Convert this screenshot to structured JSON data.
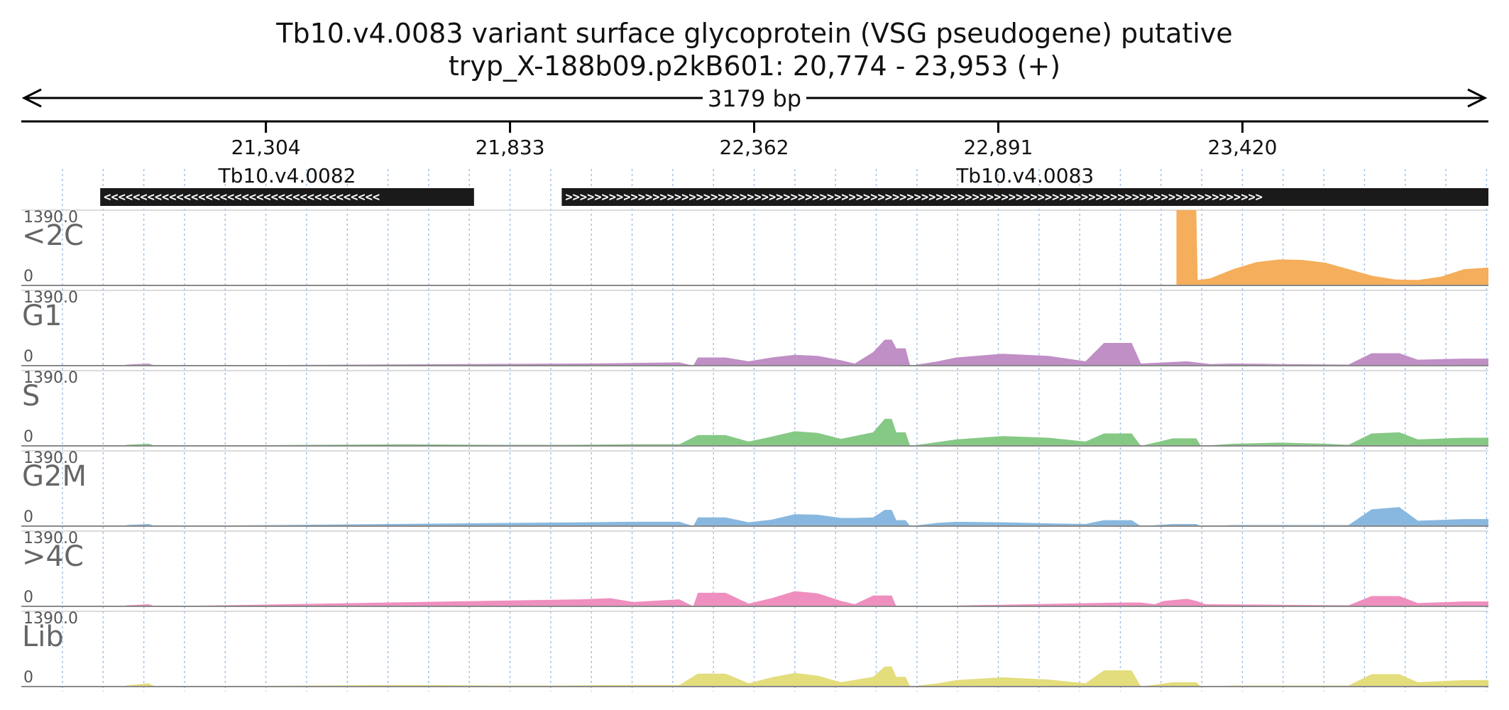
{
  "header": {
    "title_line1": "Tb10.v4.0083  variant surface glycoprotein (VSG  pseudogene)  putative",
    "title_line2": "tryp_X-188b09.p2kB601: 20,774 - 23,953 (+)",
    "span_label": "3179 bp"
  },
  "chart_data": {
    "type": "area",
    "region": {
      "contig": "tryp_X-188b09.p2kB601",
      "start": 20774,
      "end": 23953,
      "strand": "+"
    },
    "xlim": [
      20774,
      23953
    ],
    "tick_positions": [
      21304,
      21833,
      22362,
      22891,
      23420
    ],
    "tick_labels": [
      "21,304",
      "21,833",
      "22,362",
      "22,891",
      "23,420"
    ],
    "grid": true,
    "genes": [
      {
        "name": "Tb10.v4.0082",
        "start": 20945,
        "end": 21755,
        "strand": "-"
      },
      {
        "name": "Tb10.v4.0083",
        "start": 21945,
        "end": 23953,
        "strand": "+"
      }
    ],
    "ylim": [
      0,
      1390.0
    ],
    "y_max_label": "1390.0",
    "y_min_label": "0",
    "tracks": [
      {
        "name": "<2C",
        "color": "#f5ae5b",
        "points": [
          [
            23277,
            1390
          ],
          [
            23320,
            1390
          ],
          [
            23323,
            100
          ],
          [
            23350,
            130
          ],
          [
            23400,
            300
          ],
          [
            23450,
            430
          ],
          [
            23500,
            480
          ],
          [
            23550,
            470
          ],
          [
            23600,
            420
          ],
          [
            23650,
            300
          ],
          [
            23700,
            180
          ],
          [
            23750,
            110
          ],
          [
            23800,
            100
          ],
          [
            23850,
            160
          ],
          [
            23900,
            300
          ],
          [
            23953,
            330
          ]
        ]
      },
      {
        "name": "G1",
        "color": "#c08fc6",
        "points": [
          [
            21001,
            20
          ],
          [
            21050,
            40
          ],
          [
            21065,
            0
          ],
          [
            21990,
            40
          ],
          [
            22100,
            50
          ],
          [
            22200,
            60
          ],
          [
            22230,
            0
          ],
          [
            22240,
            150
          ],
          [
            22300,
            150
          ],
          [
            22350,
            80
          ],
          [
            22400,
            150
          ],
          [
            22450,
            200
          ],
          [
            22500,
            180
          ],
          [
            22550,
            100
          ],
          [
            22580,
            40
          ],
          [
            22620,
            250
          ],
          [
            22645,
            480
          ],
          [
            22660,
            480
          ],
          [
            22670,
            320
          ],
          [
            22690,
            320
          ],
          [
            22700,
            0
          ],
          [
            22760,
            80
          ],
          [
            22800,
            150
          ],
          [
            22900,
            220
          ],
          [
            23000,
            180
          ],
          [
            23080,
            80
          ],
          [
            23120,
            420
          ],
          [
            23180,
            420
          ],
          [
            23200,
            40
          ],
          [
            23250,
            60
          ],
          [
            23300,
            80
          ],
          [
            23350,
            30
          ],
          [
            23400,
            40
          ],
          [
            23500,
            30
          ],
          [
            23650,
            20
          ],
          [
            23700,
            230
          ],
          [
            23760,
            230
          ],
          [
            23800,
            110
          ],
          [
            23900,
            130
          ],
          [
            23953,
            130
          ]
        ]
      },
      {
        "name": "S",
        "color": "#85c985",
        "points": [
          [
            21001,
            20
          ],
          [
            21050,
            40
          ],
          [
            21065,
            0
          ],
          [
            21600,
            30
          ],
          [
            21800,
            20
          ],
          [
            21950,
            20
          ],
          [
            22100,
            30
          ],
          [
            22200,
            30
          ],
          [
            22240,
            200
          ],
          [
            22300,
            200
          ],
          [
            22350,
            80
          ],
          [
            22400,
            170
          ],
          [
            22450,
            270
          ],
          [
            22500,
            240
          ],
          [
            22550,
            130
          ],
          [
            22620,
            250
          ],
          [
            22645,
            500
          ],
          [
            22660,
            500
          ],
          [
            22670,
            250
          ],
          [
            22690,
            250
          ],
          [
            22700,
            0
          ],
          [
            22760,
            70
          ],
          [
            22800,
            120
          ],
          [
            22900,
            180
          ],
          [
            23000,
            150
          ],
          [
            23080,
            80
          ],
          [
            23120,
            230
          ],
          [
            23180,
            230
          ],
          [
            23200,
            0
          ],
          [
            23270,
            140
          ],
          [
            23320,
            140
          ],
          [
            23330,
            0
          ],
          [
            23400,
            40
          ],
          [
            23500,
            60
          ],
          [
            23600,
            40
          ],
          [
            23650,
            20
          ],
          [
            23700,
            230
          ],
          [
            23760,
            250
          ],
          [
            23800,
            120
          ],
          [
            23900,
            150
          ],
          [
            23953,
            150
          ]
        ]
      },
      {
        "name": "G2M",
        "color": "#88b8df",
        "points": [
          [
            21001,
            20
          ],
          [
            21050,
            40
          ],
          [
            21065,
            0
          ],
          [
            21990,
            70
          ],
          [
            22100,
            80
          ],
          [
            22200,
            80
          ],
          [
            22230,
            0
          ],
          [
            22240,
            160
          ],
          [
            22300,
            160
          ],
          [
            22350,
            70
          ],
          [
            22400,
            120
          ],
          [
            22450,
            220
          ],
          [
            22500,
            210
          ],
          [
            22550,
            150
          ],
          [
            22580,
            150
          ],
          [
            22620,
            160
          ],
          [
            22645,
            300
          ],
          [
            22660,
            300
          ],
          [
            22670,
            110
          ],
          [
            22690,
            110
          ],
          [
            22700,
            0
          ],
          [
            22760,
            60
          ],
          [
            22800,
            80
          ],
          [
            22900,
            70
          ],
          [
            23000,
            50
          ],
          [
            23080,
            40
          ],
          [
            23120,
            110
          ],
          [
            23180,
            110
          ],
          [
            23200,
            0
          ],
          [
            23270,
            40
          ],
          [
            23320,
            40
          ],
          [
            23330,
            0
          ],
          [
            23400,
            20
          ],
          [
            23500,
            20
          ],
          [
            23650,
            20
          ],
          [
            23700,
            310
          ],
          [
            23760,
            350
          ],
          [
            23800,
            100
          ],
          [
            23900,
            130
          ],
          [
            23953,
            130
          ]
        ]
      },
      {
        "name": ">4C",
        "color": "#ef8fbf",
        "points": [
          [
            21001,
            20
          ],
          [
            21050,
            40
          ],
          [
            21065,
            0
          ],
          [
            21990,
            130
          ],
          [
            22050,
            150
          ],
          [
            22100,
            80
          ],
          [
            22200,
            130
          ],
          [
            22230,
            0
          ],
          [
            22240,
            250
          ],
          [
            22300,
            250
          ],
          [
            22350,
            50
          ],
          [
            22400,
            150
          ],
          [
            22450,
            280
          ],
          [
            22500,
            240
          ],
          [
            22550,
            100
          ],
          [
            22580,
            40
          ],
          [
            22620,
            200
          ],
          [
            22660,
            200
          ],
          [
            22670,
            0
          ],
          [
            22700,
            0
          ],
          [
            23160,
            70
          ],
          [
            23200,
            70
          ],
          [
            23230,
            40
          ],
          [
            23250,
            100
          ],
          [
            23300,
            140
          ],
          [
            23320,
            100
          ],
          [
            23340,
            40
          ],
          [
            23500,
            30
          ],
          [
            23650,
            20
          ],
          [
            23700,
            190
          ],
          [
            23760,
            190
          ],
          [
            23800,
            60
          ],
          [
            23900,
            90
          ],
          [
            23953,
            90
          ]
        ]
      },
      {
        "name": "Lib",
        "color": "#e3dd7c",
        "points": [
          [
            21001,
            20
          ],
          [
            21050,
            60
          ],
          [
            21065,
            0
          ],
          [
            21600,
            30
          ],
          [
            21800,
            20
          ],
          [
            21950,
            20
          ],
          [
            22100,
            30
          ],
          [
            22200,
            30
          ],
          [
            22240,
            240
          ],
          [
            22300,
            240
          ],
          [
            22350,
            60
          ],
          [
            22400,
            170
          ],
          [
            22450,
            250
          ],
          [
            22500,
            200
          ],
          [
            22550,
            80
          ],
          [
            22620,
            180
          ],
          [
            22645,
            370
          ],
          [
            22660,
            370
          ],
          [
            22670,
            180
          ],
          [
            22690,
            180
          ],
          [
            22700,
            0
          ],
          [
            22760,
            60
          ],
          [
            22800,
            120
          ],
          [
            22900,
            170
          ],
          [
            23000,
            130
          ],
          [
            23080,
            60
          ],
          [
            23120,
            300
          ],
          [
            23180,
            300
          ],
          [
            23200,
            0
          ],
          [
            23270,
            80
          ],
          [
            23320,
            80
          ],
          [
            23330,
            0
          ],
          [
            23400,
            20
          ],
          [
            23500,
            20
          ],
          [
            23650,
            20
          ],
          [
            23700,
            230
          ],
          [
            23760,
            230
          ],
          [
            23800,
            80
          ],
          [
            23900,
            120
          ],
          [
            23953,
            120
          ]
        ]
      }
    ]
  }
}
